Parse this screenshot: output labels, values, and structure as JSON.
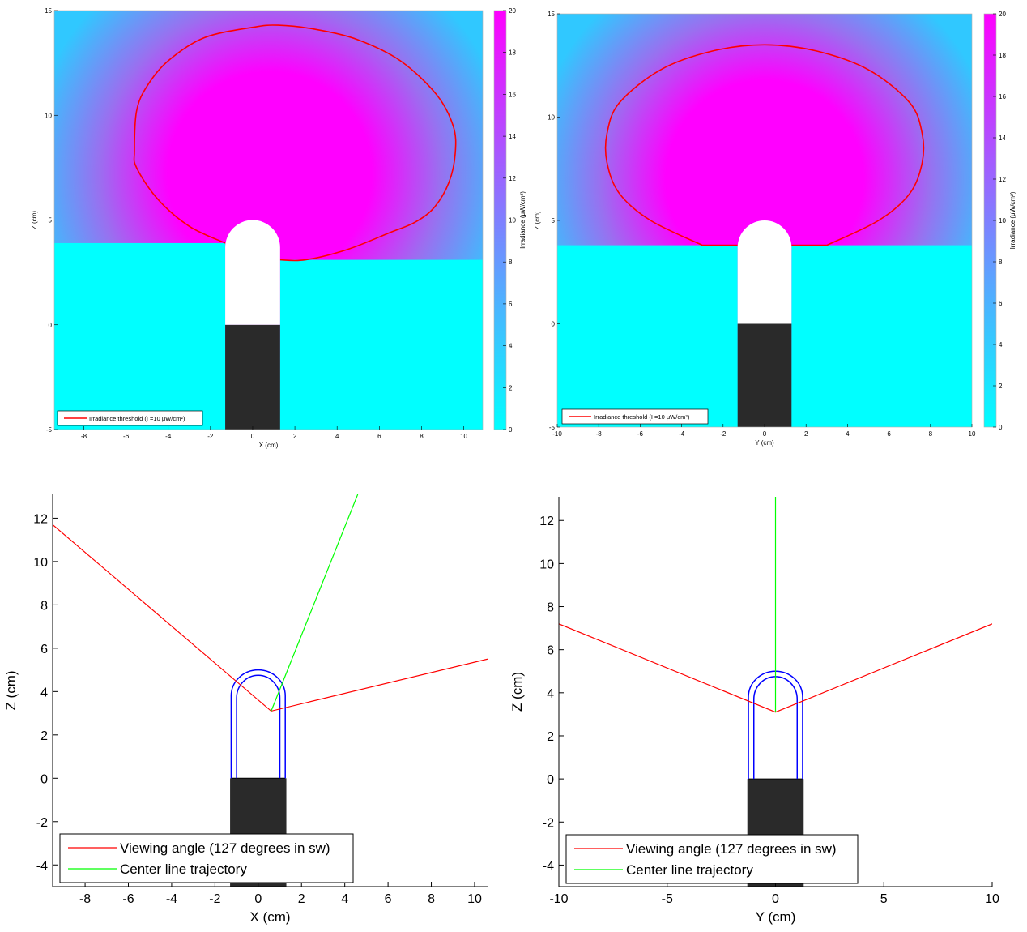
{
  "colors": {
    "background": "#ffffff",
    "field_low": "#00ffff",
    "field_high": "#ff00ff",
    "threshold_line": "#ff0000",
    "viewing_angle": "#ff0000",
    "center_line": "#00ff00",
    "diffuser_outline": "#0000ff",
    "housing": "#2a2a2a",
    "diffuser_fill": "#ffffff"
  },
  "chart_data": [
    {
      "id": "irr_xz",
      "type": "heatmap",
      "xlabel": "X (cm)",
      "ylabel": "Z (cm)",
      "xlim": [
        -9.4,
        10.9
      ],
      "ylim": [
        -5,
        15
      ],
      "xticks": [
        -8,
        -6,
        -4,
        -2,
        0,
        2,
        4,
        6,
        8,
        10
      ],
      "yticks": [
        -5,
        0,
        5,
        10,
        15
      ],
      "colorbar": {
        "label": "Irradiance (μW/cm²)",
        "range": [
          0,
          20
        ],
        "ticks": [
          0,
          2,
          4,
          6,
          8,
          10,
          12,
          14,
          16,
          18,
          20
        ]
      },
      "field_center": [
        0.8,
        7.2
      ],
      "legend": [
        {
          "label": "Irradiance threshold (I =10 μW/cm²)",
          "color": "#ff0000"
        }
      ],
      "legend_position": "bottom-left",
      "threshold_contour": [
        [
          -1.3,
          3.9
        ],
        [
          -3.0,
          4.7
        ],
        [
          -4.5,
          6.0
        ],
        [
          -5.5,
          7.5
        ],
        [
          -5.6,
          8.3
        ],
        [
          -5.5,
          10.2
        ],
        [
          -5.0,
          11.4
        ],
        [
          -4.0,
          12.6
        ],
        [
          -2.3,
          13.7
        ],
        [
          0.0,
          14.2
        ],
        [
          1.2,
          14.3
        ],
        [
          3.0,
          14.1
        ],
        [
          5.0,
          13.6
        ],
        [
          7.0,
          12.6
        ],
        [
          8.7,
          11.0
        ],
        [
          9.5,
          9.5
        ],
        [
          9.6,
          8.2
        ],
        [
          9.3,
          6.8
        ],
        [
          8.6,
          5.6
        ],
        [
          7.7,
          4.9
        ],
        [
          6.5,
          4.4
        ],
        [
          4.5,
          3.6
        ],
        [
          2.5,
          3.1
        ],
        [
          1.3,
          3.1
        ]
      ],
      "diffuser_xz": [
        [
          -1.3,
          0
        ],
        [
          -1.3,
          3.7
        ],
        [
          0,
          5
        ],
        [
          1.3,
          3.7
        ],
        [
          1.3,
          0
        ]
      ],
      "housing_rect": {
        "x": [
          -1.3,
          1.3
        ],
        "z": [
          -5,
          0
        ]
      }
    },
    {
      "id": "irr_yz",
      "type": "heatmap",
      "xlabel": "Y (cm)",
      "ylabel": "Z (cm)",
      "xlim": [
        -10,
        10
      ],
      "ylim": [
        -5,
        15
      ],
      "xticks": [
        -10,
        -8,
        -6,
        -4,
        -2,
        0,
        2,
        4,
        6,
        8,
        10
      ],
      "yticks": [
        -5,
        0,
        5,
        10,
        15
      ],
      "colorbar": {
        "label": "Irradiance (μW/cm²)",
        "range": [
          0,
          20
        ],
        "ticks": [
          0,
          2,
          4,
          6,
          8,
          10,
          12,
          14,
          16,
          18,
          20
        ]
      },
      "field_center": [
        0,
        7.0
      ],
      "legend": [
        {
          "label": "Irradiance threshold (I =10 μW/cm²)",
          "color": "#ff0000"
        }
      ],
      "legend_position": "bottom-left",
      "threshold_contour": [
        [
          -3.0,
          3.8
        ],
        [
          -5.5,
          5.0
        ],
        [
          -7.0,
          6.3
        ],
        [
          -7.6,
          7.8
        ],
        [
          -7.6,
          9.2
        ],
        [
          -7.0,
          10.7
        ],
        [
          -5.0,
          12.3
        ],
        [
          -2.5,
          13.2
        ],
        [
          0.0,
          13.5
        ],
        [
          2.5,
          13.2
        ],
        [
          5.0,
          12.3
        ],
        [
          7.0,
          10.7
        ],
        [
          7.6,
          9.2
        ],
        [
          7.6,
          7.8
        ],
        [
          7.0,
          6.3
        ],
        [
          5.5,
          5.0
        ],
        [
          3.0,
          3.8
        ]
      ],
      "threshold_flat": [
        [
          -3.0,
          3.8
        ],
        [
          -1.3,
          3.8
        ],
        [
          1.3,
          3.8
        ],
        [
          3.0,
          3.8
        ]
      ],
      "diffuser_xz": [
        [
          -1.3,
          0
        ],
        [
          -1.3,
          3.7
        ],
        [
          0,
          5
        ],
        [
          1.3,
          3.7
        ],
        [
          1.3,
          0
        ]
      ],
      "housing_rect": {
        "x": [
          -1.3,
          1.3
        ],
        "z": [
          -5,
          0
        ]
      }
    },
    {
      "id": "traj_xz",
      "type": "line",
      "xlabel": "X (cm)",
      "ylabel": "Z (cm)",
      "xlim": [
        -9.5,
        10.6
      ],
      "ylim": [
        -5,
        13.1
      ],
      "xticks": [
        -8,
        -6,
        -4,
        -2,
        0,
        2,
        4,
        6,
        8,
        10
      ],
      "yticks": [
        -4,
        -2,
        0,
        2,
        4,
        6,
        8,
        10,
        12
      ],
      "legend_position": "bottom-left",
      "series": [
        {
          "name": "Viewing angle (127 degrees in sw)",
          "color": "#ff0000",
          "points": [
            [
              -9.5,
              11.7
            ],
            [
              0.6,
              3.1
            ],
            [
              10.6,
              5.5
            ]
          ]
        },
        {
          "name": "Center line trajectory",
          "color": "#00ff00",
          "points": [
            [
              0.6,
              3.1
            ],
            [
              4.6,
              13.1
            ]
          ]
        }
      ],
      "diffuser_outer": [
        [
          -1.25,
          0
        ],
        [
          -1.25,
          3.8
        ],
        [
          0,
          5.0
        ],
        [
          1.25,
          3.8
        ],
        [
          1.25,
          0
        ]
      ],
      "diffuser_inner": [
        [
          -1.0,
          0
        ],
        [
          -1.0,
          3.7
        ],
        [
          0,
          4.75
        ],
        [
          1.0,
          3.7
        ],
        [
          1.0,
          0
        ]
      ],
      "housing_rect": {
        "x": [
          -1.3,
          1.3
        ],
        "z": [
          -5,
          0
        ]
      }
    },
    {
      "id": "traj_yz",
      "type": "line",
      "xlabel": "Y (cm)",
      "ylabel": "Z (cm)",
      "xlim": [
        -10,
        10
      ],
      "ylim": [
        -5,
        13.1
      ],
      "xticks": [
        -10,
        -5,
        0,
        5,
        10
      ],
      "yticks": [
        -4,
        -2,
        0,
        2,
        4,
        6,
        8,
        10,
        12
      ],
      "legend_position": "bottom-left",
      "series": [
        {
          "name": "Viewing angle (127 degrees in sw)",
          "color": "#ff0000",
          "points": [
            [
              -10,
              7.2
            ],
            [
              0,
              3.1
            ],
            [
              10,
              7.2
            ]
          ]
        },
        {
          "name": "Center line trajectory",
          "color": "#00ff00",
          "points": [
            [
              0,
              3.1
            ],
            [
              0,
              13.1
            ]
          ]
        }
      ],
      "diffuser_outer": [
        [
          -1.25,
          0
        ],
        [
          -1.25,
          3.8
        ],
        [
          0,
          5.0
        ],
        [
          1.25,
          3.8
        ],
        [
          1.25,
          0
        ]
      ],
      "diffuser_inner": [
        [
          -1.0,
          0
        ],
        [
          -1.0,
          3.7
        ],
        [
          0,
          4.75
        ],
        [
          1.0,
          3.7
        ],
        [
          1.0,
          0
        ]
      ],
      "housing_rect": {
        "x": [
          -1.3,
          1.3
        ],
        "z": [
          -5,
          0
        ]
      }
    }
  ]
}
